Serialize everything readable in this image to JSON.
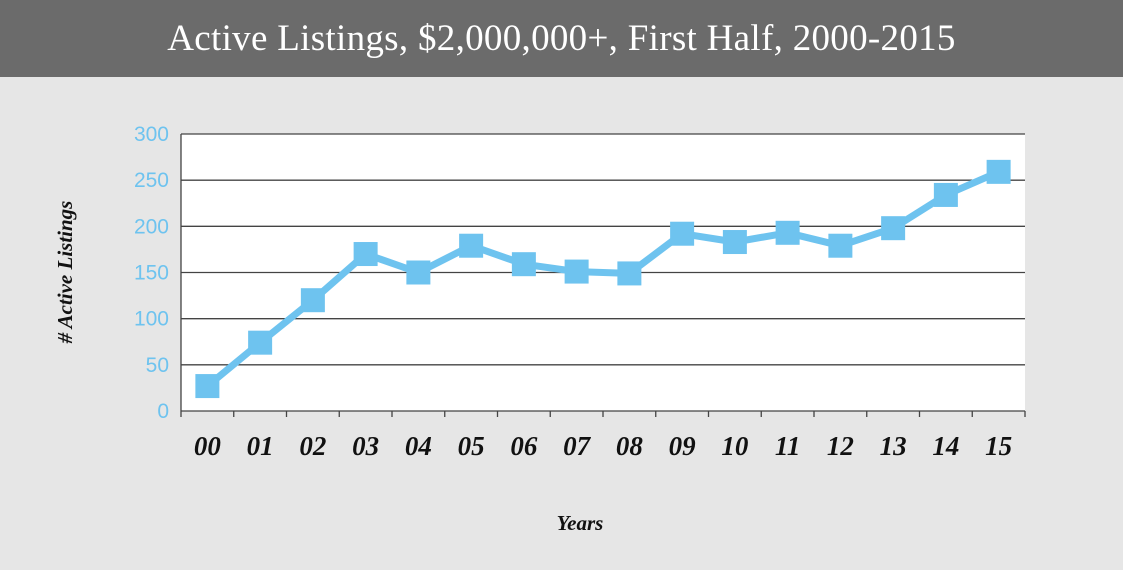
{
  "header": {
    "title": "Active Listings, $2,000,000+, First Half, 2000-2015"
  },
  "chart_data": {
    "type": "line",
    "title": "Active Listings, $2,000,000+, First Half, 2000-2015",
    "xlabel": "Years",
    "ylabel": "# Active Listings",
    "categories": [
      "00",
      "01",
      "02",
      "03",
      "04",
      "05",
      "06",
      "07",
      "08",
      "09",
      "10",
      "11",
      "12",
      "13",
      "14",
      "15"
    ],
    "series": [
      {
        "values": [
          27,
          74,
          120,
          170,
          150,
          179,
          159,
          151,
          149,
          192,
          183,
          193,
          179,
          198,
          234,
          259
        ]
      }
    ],
    "ylim": [
      0,
      300
    ],
    "yticks": [
      "0",
      "50",
      "100",
      "150",
      "200",
      "250",
      "300"
    ],
    "grid": true,
    "legend": "none",
    "colors": {
      "line": "#6ec3ef",
      "marker": "#6ec3ef",
      "plot_background": "#ffffff",
      "gridline": "#444444",
      "page_background": "#e6e6e6",
      "title_bar": "#6b6b6b"
    }
  }
}
